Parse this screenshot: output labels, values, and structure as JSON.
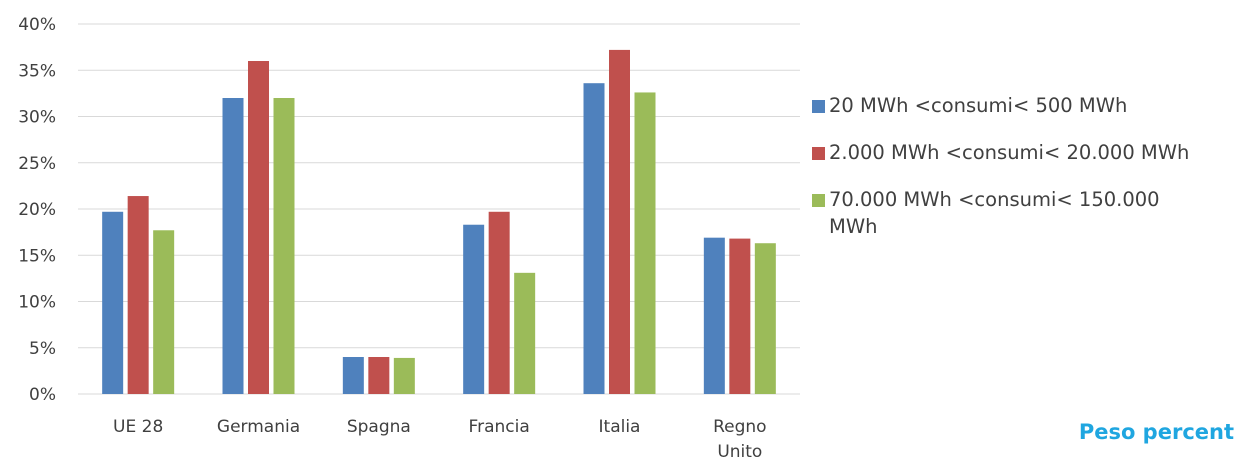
{
  "chart_data": {
    "type": "bar",
    "categories": [
      "UE 28",
      "Germania",
      "Spagna",
      "Francia",
      "Italia",
      "Regno Unito"
    ],
    "series": [
      {
        "name": "20 MWh <consumi< 500 MWh",
        "color": "#4f81bd",
        "values": [
          19.7,
          32.0,
          4.0,
          18.3,
          33.6,
          16.9
        ]
      },
      {
        "name": "2.000 MWh <consumi< 20.000 MWh",
        "color": "#c0504d",
        "values": [
          21.4,
          36.0,
          4.0,
          19.7,
          37.2,
          16.8
        ]
      },
      {
        "name": "70.000 MWh <consumi< 150.000 MWh",
        "color": "#9bbb59",
        "values": [
          17.7,
          32.0,
          3.9,
          13.1,
          32.6,
          16.3
        ]
      }
    ],
    "yticks": [
      "0%",
      "5%",
      "10%",
      "15%",
      "20%",
      "25%",
      "30%",
      "35%",
      "40%"
    ],
    "ylim": [
      0,
      40
    ],
    "grid": true,
    "legend_position": "right"
  },
  "corner_text": "Peso percent"
}
